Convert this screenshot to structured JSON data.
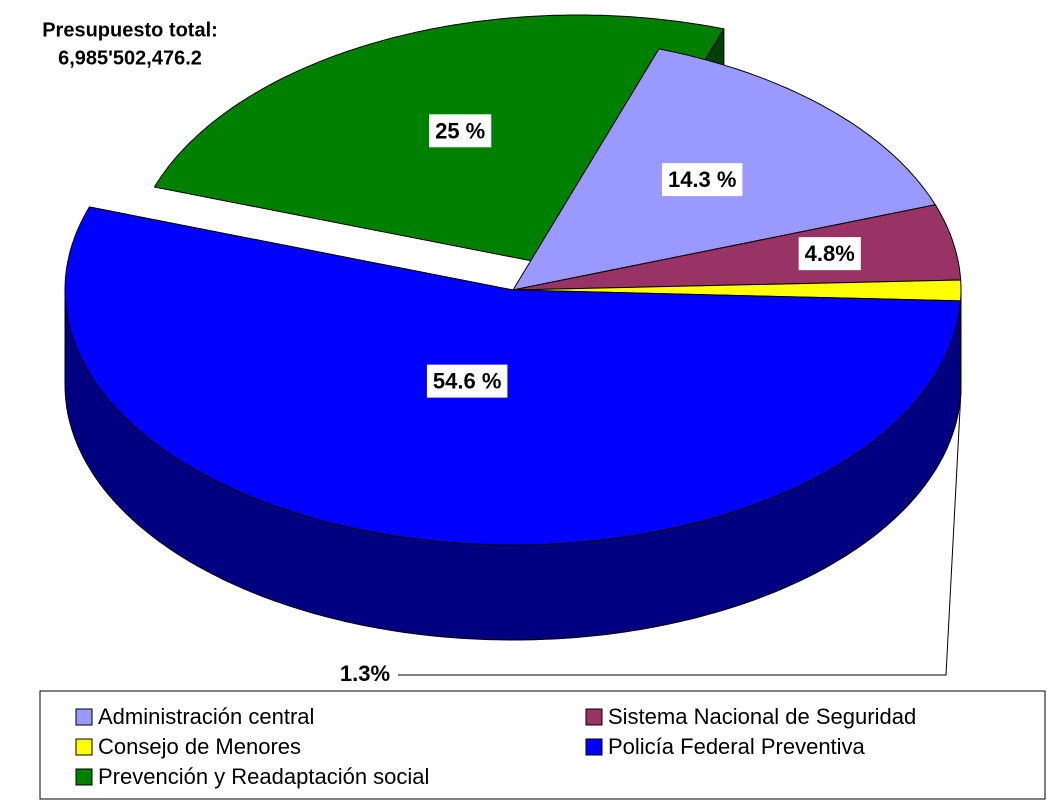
{
  "chart_data": {
    "type": "pie3d",
    "title": "Presupuesto total:",
    "subtitle": "6,985'502,476.2",
    "categories": [
      "Administración central",
      "Sistema Nacional de Seguridad",
      "Consejo de Menores",
      "Policía Federal Preventiva",
      "Prevención y Readaptación social"
    ],
    "values": [
      14.3,
      4.8,
      1.3,
      54.6,
      25
    ],
    "value_labels": [
      "14.3 %",
      "4.8%",
      "1.3%",
      "54.6 %",
      "25 %"
    ],
    "colors": [
      "#9999ff",
      "#993366",
      "#ffff00",
      "#0000ff",
      "#008000"
    ],
    "exploded": "Prevención y Readaptación social",
    "legend": "bottom"
  }
}
